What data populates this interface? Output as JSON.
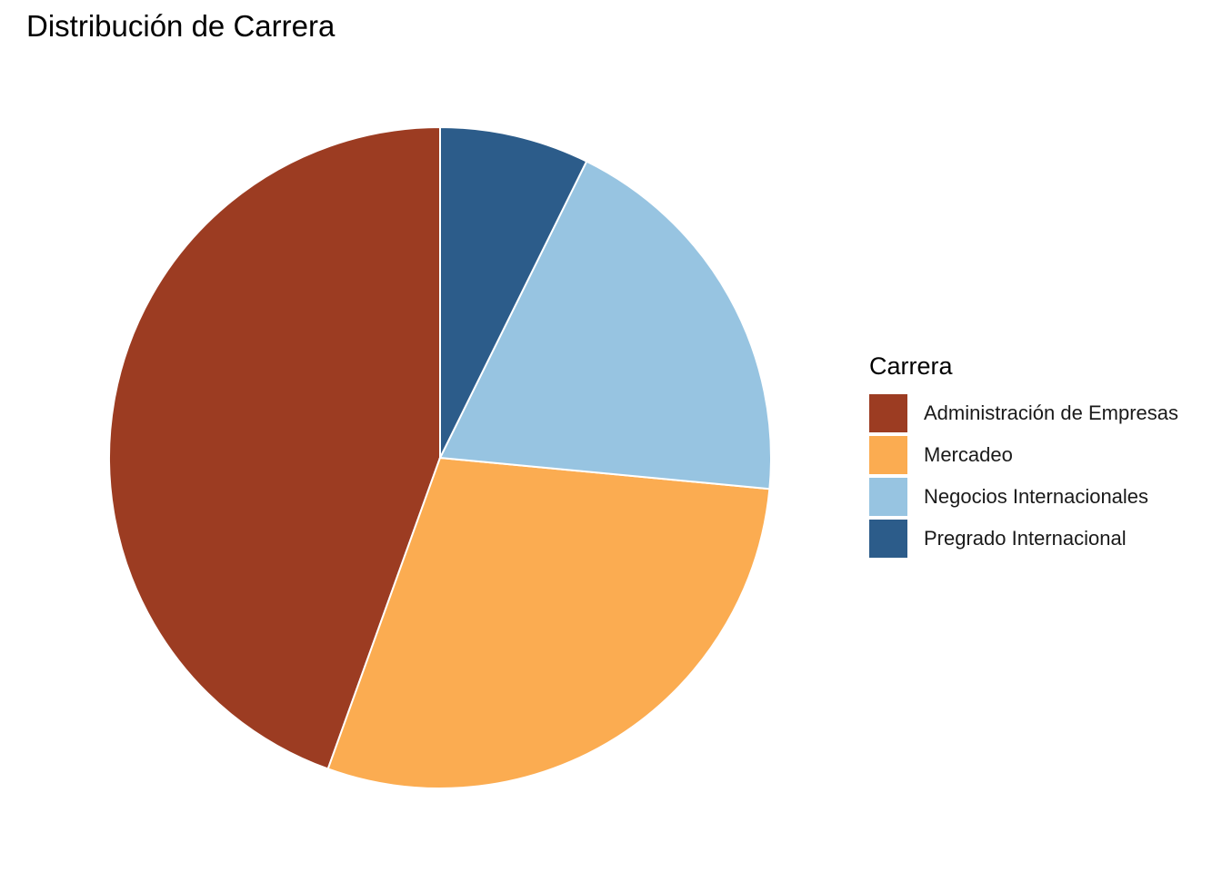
{
  "chart_data": {
    "type": "pie",
    "title": "Distribución de Carrera",
    "legend_title": "Carrera",
    "legend_position": "right",
    "start_angle_deg": 0,
    "direction": "counterclockwise",
    "slices": [
      {
        "label": "Administración de Empresas",
        "value": 44.5,
        "color": "#9C3C22"
      },
      {
        "label": "Mercadeo",
        "value": 29.0,
        "color": "#FBAC51"
      },
      {
        "label": "Negocios Internacionales",
        "value": 19.2,
        "color": "#97C4E1"
      },
      {
        "label": "Pregrado Internacional",
        "value": 7.3,
        "color": "#2C5C8A"
      }
    ]
  }
}
